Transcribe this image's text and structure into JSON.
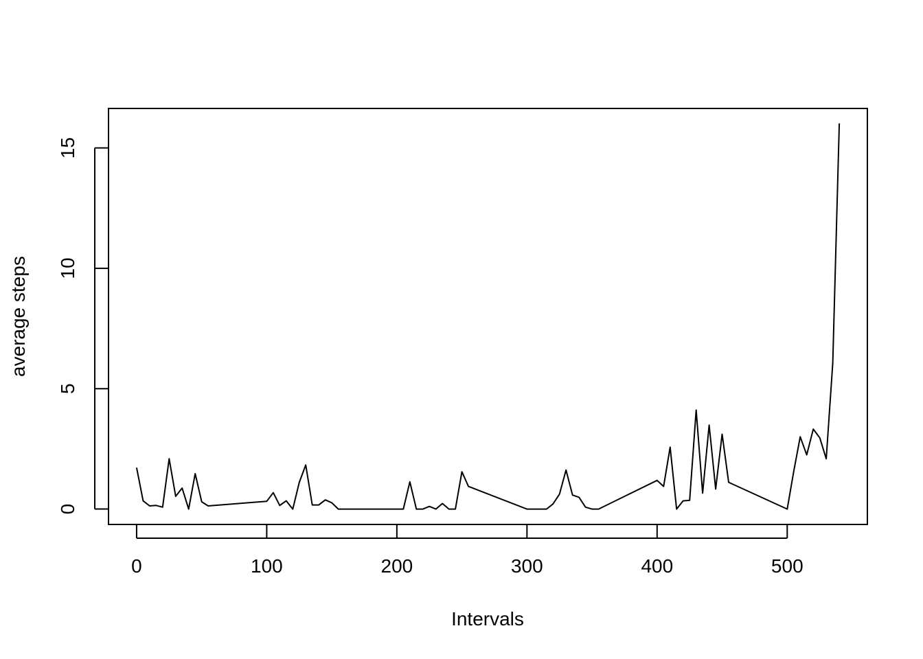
{
  "chart_data": {
    "type": "line",
    "title": "",
    "xlabel": "Intervals",
    "ylabel": "average steps",
    "xlim": [
      -21.6,
      561.6
    ],
    "ylim": [
      -0.64,
      16.64
    ],
    "xticks": [
      0,
      100,
      200,
      300,
      400,
      500
    ],
    "xtick_labels": [
      "0",
      "100",
      "200",
      "300",
      "400",
      "500"
    ],
    "yticks": [
      0,
      5,
      10,
      15
    ],
    "ytick_labels": [
      "0",
      "5",
      "10",
      "15"
    ],
    "grid": false,
    "line_color": "#000000",
    "series": [
      {
        "x": [
          0,
          5,
          10,
          15,
          20,
          25,
          30,
          35,
          40,
          45,
          50,
          55,
          100,
          105,
          110,
          115,
          120,
          125,
          130,
          135,
          140,
          145,
          150,
          155,
          200,
          205,
          210,
          215,
          220,
          225,
          230,
          235,
          240,
          245,
          250,
          255,
          300,
          305,
          310,
          315,
          320,
          325,
          330,
          335,
          340,
          345,
          350,
          355,
          400,
          405,
          410,
          415,
          420,
          425,
          430,
          435,
          440,
          445,
          450,
          455,
          500,
          505,
          510,
          515,
          520,
          525,
          530,
          535,
          540
        ],
        "y": [
          1.72,
          0.34,
          0.13,
          0.15,
          0.08,
          2.09,
          0.53,
          0.87,
          0.0,
          1.47,
          0.3,
          0.13,
          0.32,
          0.68,
          0.15,
          0.34,
          0.0,
          1.11,
          1.83,
          0.17,
          0.17,
          0.38,
          0.26,
          0.0,
          0.0,
          0.0,
          1.13,
          0.0,
          0.0,
          0.11,
          0.0,
          0.23,
          0.0,
          0.0,
          1.55,
          0.94,
          0.0,
          0.0,
          0.0,
          0.0,
          0.21,
          0.62,
          1.62,
          0.58,
          0.49,
          0.08,
          0.0,
          0.0,
          1.19,
          0.94,
          2.57,
          0.0,
          0.34,
          0.36,
          4.11,
          0.66,
          3.49,
          0.83,
          3.11,
          1.11,
          0.0,
          1.57,
          3.0,
          2.25,
          3.32,
          2.96,
          2.09,
          6.06,
          16.02
        ]
      }
    ]
  }
}
